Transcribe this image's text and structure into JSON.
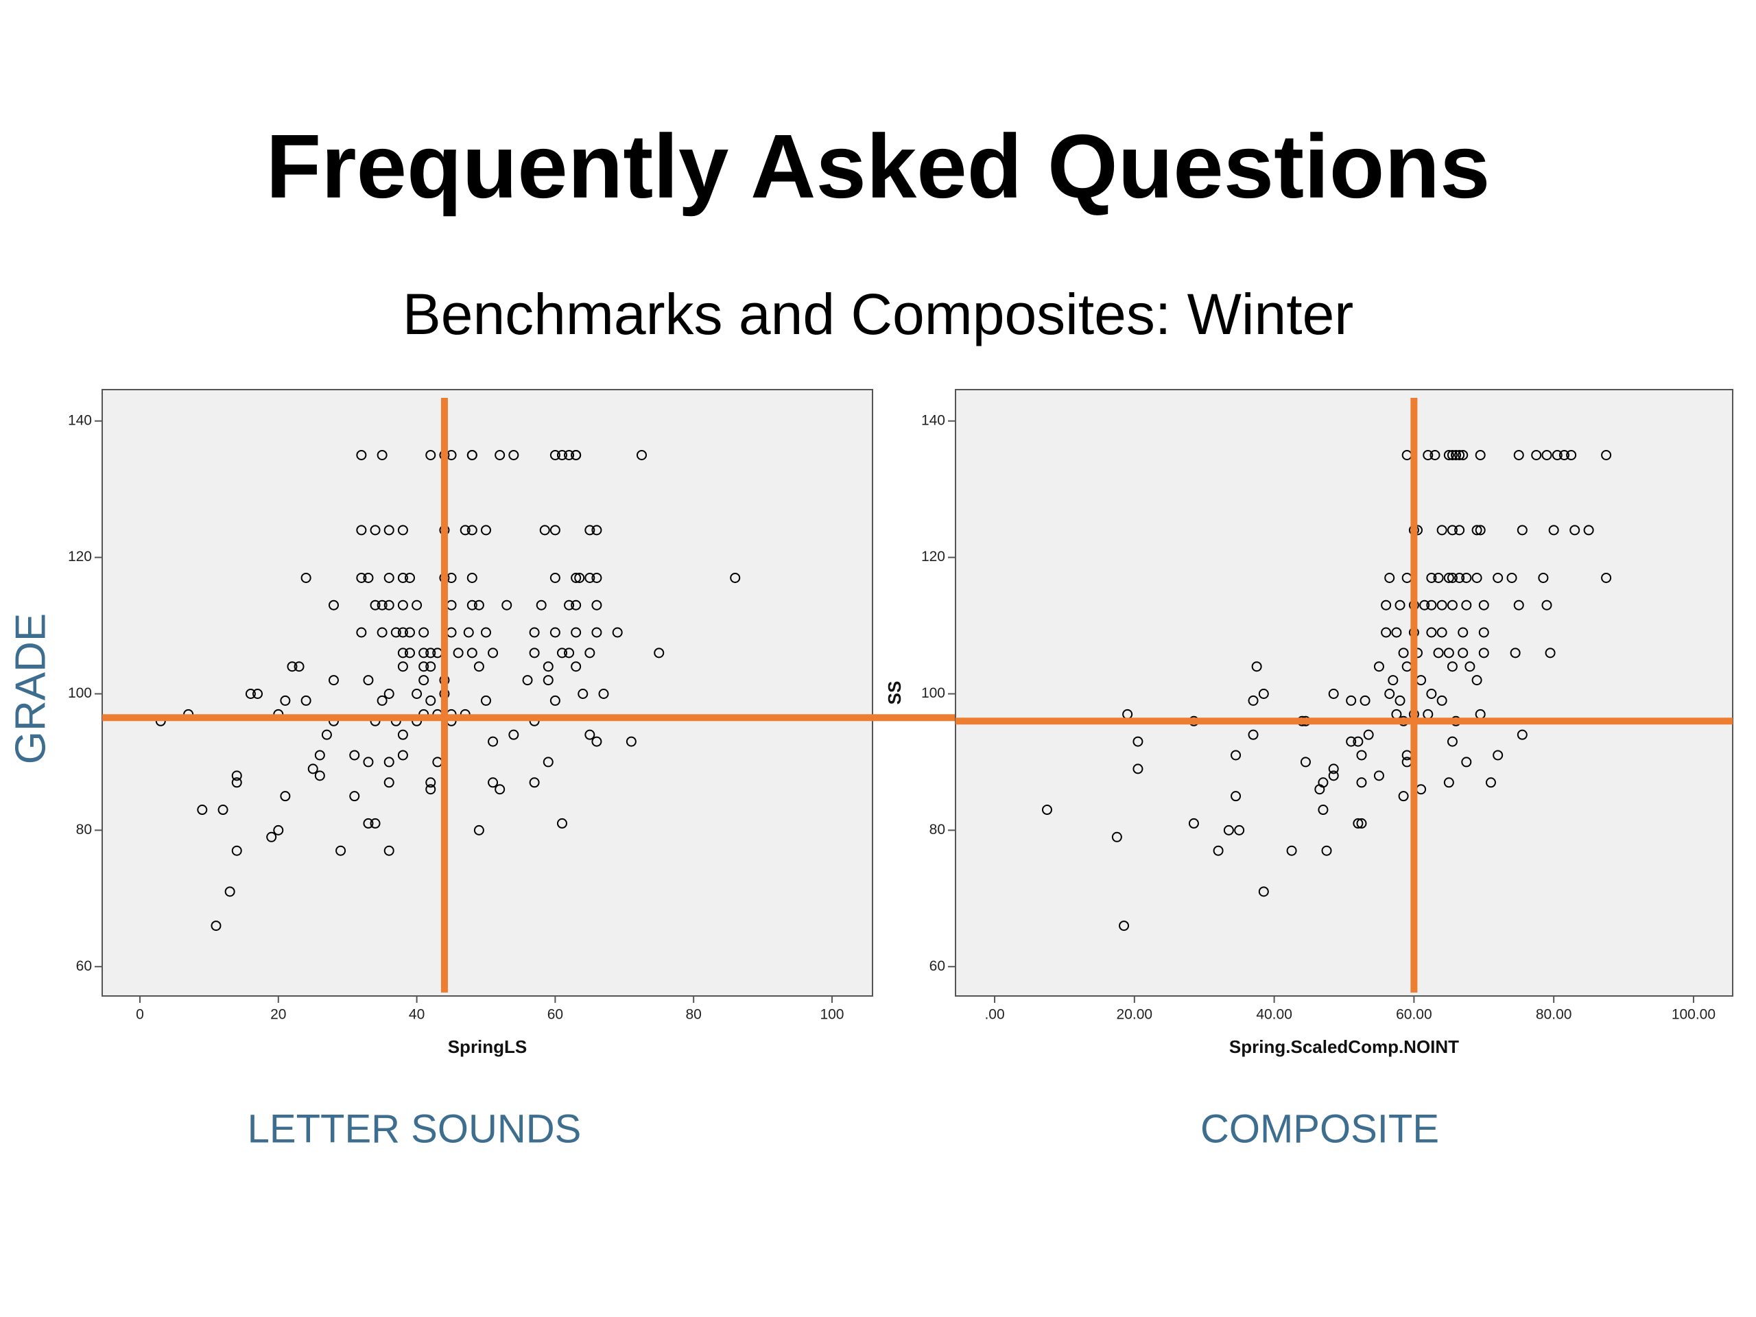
{
  "title": "Frequently Asked Questions",
  "subtitle": "Benchmarks and Composites: Winter",
  "chart_data": [
    {
      "type": "scatter",
      "x_label": "SpringLS",
      "y_label": "GRADE",
      "caption": "LETTER SOUNDS",
      "color": "#000000",
      "line_color": "#ed7d31",
      "vline": 44,
      "hline": 96.5,
      "xlim": [
        -5.45,
        105.85
      ],
      "ylim": [
        55.7,
        144.6
      ],
      "xticks": [
        0,
        20,
        40,
        60,
        80,
        100
      ],
      "yticks": [
        60,
        80,
        100,
        120,
        140
      ],
      "x": [
        32,
        35,
        42,
        44,
        45,
        48,
        48,
        52,
        54,
        60,
        61,
        62,
        63,
        63,
        72.5,
        32,
        34,
        36,
        38,
        44,
        47,
        48,
        50,
        58.5,
        60,
        65,
        66,
        24,
        32,
        33,
        36,
        38,
        39,
        44,
        45,
        48,
        60,
        63,
        63.5,
        65,
        66,
        86,
        28,
        34,
        35,
        36,
        38,
        40,
        45,
        48,
        49,
        53,
        58,
        62,
        63,
        66,
        32,
        35,
        37,
        38,
        39,
        41,
        45,
        47.5,
        50,
        57,
        60,
        63,
        66,
        69,
        38,
        39,
        41,
        42,
        43,
        46,
        48,
        51,
        57,
        61,
        62,
        65,
        75,
        22,
        23,
        38,
        41,
        42,
        49,
        59,
        63,
        28,
        33,
        41,
        44,
        56,
        59,
        16,
        17,
        36,
        40,
        44,
        64,
        67,
        21,
        24,
        35,
        42,
        50,
        60,
        7,
        20,
        41,
        43,
        45,
        47,
        3,
        28,
        34,
        37,
        40,
        45,
        57,
        27,
        38,
        54,
        65,
        51,
        66,
        71,
        26,
        31,
        38,
        33,
        36,
        43,
        59,
        25,
        14,
        26,
        14,
        36,
        42,
        51,
        57,
        42,
        52,
        21,
        31,
        9,
        12,
        33,
        34,
        61,
        20,
        49,
        19,
        14,
        29,
        36,
        13,
        11
      ],
      "values": [
        135,
        135,
        135,
        135,
        135,
        135,
        135,
        135,
        135,
        135,
        135,
        135,
        135,
        135,
        135,
        124,
        124,
        124,
        124,
        124,
        124,
        124,
        124,
        124,
        124,
        124,
        124,
        117,
        117,
        117,
        117,
        117,
        117,
        117,
        117,
        117,
        117,
        117,
        117,
        117,
        117,
        117,
        113,
        113,
        113,
        113,
        113,
        113,
        113,
        113,
        113,
        113,
        113,
        113,
        113,
        113,
        109,
        109,
        109,
        109,
        109,
        109,
        109,
        109,
        109,
        109,
        109,
        109,
        109,
        109,
        106,
        106,
        106,
        106,
        106,
        106,
        106,
        106,
        106,
        106,
        106,
        106,
        106,
        104,
        104,
        104,
        104,
        104,
        104,
        104,
        104,
        102,
        102,
        102,
        102,
        102,
        102,
        100,
        100,
        100,
        100,
        100,
        100,
        100,
        99,
        99,
        99,
        99,
        99,
        99,
        97,
        97,
        97,
        97,
        97,
        97,
        96,
        96,
        96,
        96,
        96,
        96,
        96,
        94,
        94,
        94,
        94,
        93,
        93,
        93,
        91,
        91,
        91,
        90,
        90,
        90,
        90,
        89,
        88,
        88,
        87,
        87,
        87,
        87,
        87,
        86,
        86,
        85,
        85,
        83,
        83,
        81,
        81,
        81,
        80,
        80,
        79,
        77,
        77,
        77,
        71,
        66
      ]
    },
    {
      "type": "scatter",
      "x_label": "Spring.ScaledComp.NOINT",
      "y_label": "SS",
      "caption": "COMPOSITE",
      "color": "#000000",
      "line_color": "#ed7d31",
      "vline": 60,
      "hline": 96,
      "xlim": [
        -5.6,
        105.6
      ],
      "ylim": [
        55.7,
        144.6
      ],
      "xticks": [
        {
          "value": 0,
          "label": ".00"
        },
        {
          "value": 20,
          "label": "20.00"
        },
        {
          "value": 40,
          "label": "40.00"
        },
        {
          "value": 60,
          "label": "60.00"
        },
        {
          "value": 80,
          "label": "80.00"
        },
        {
          "value": 100,
          "label": "100.00"
        }
      ],
      "yticks": [
        60,
        80,
        100,
        120,
        140
      ],
      "x": [
        59,
        62,
        63,
        65,
        65.5,
        66,
        66.5,
        67,
        69.5,
        75,
        77.5,
        79,
        80.5,
        81.5,
        82.5,
        87.5,
        60,
        60.5,
        64,
        65.5,
        66.5,
        69,
        69.5,
        75.5,
        80,
        83,
        85,
        56.5,
        59,
        62.5,
        63.5,
        65,
        65.5,
        66.5,
        67.5,
        69,
        72,
        74,
        78.5,
        87.5,
        56,
        58,
        60,
        61.5,
        62.5,
        64,
        65.5,
        67.5,
        70,
        75,
        79,
        56,
        57.5,
        60,
        62.5,
        64,
        67,
        70,
        58.5,
        60.5,
        63.5,
        65,
        67,
        70,
        74.5,
        79.5,
        37.5,
        55,
        59,
        65.5,
        68,
        57,
        61,
        69,
        38.5,
        48.5,
        56.5,
        62.5,
        37,
        51,
        53,
        58,
        64,
        19,
        57.5,
        60,
        62,
        69.5,
        28.5,
        44,
        44.5,
        58.5,
        66,
        37,
        53.5,
        75.5,
        20.5,
        51,
        52,
        65.5,
        34.5,
        52.5,
        59,
        72,
        44.5,
        59,
        67.5,
        20.5,
        48.5,
        48.5,
        55,
        47,
        52.5,
        65,
        71,
        46.5,
        61,
        34.5,
        58.5,
        7.5,
        47,
        28.5,
        52,
        52.5,
        33.5,
        35,
        17.5,
        32,
        42.5,
        47.5,
        38.5,
        18.5
      ],
      "values": [
        135,
        135,
        135,
        135,
        135,
        135,
        135,
        135,
        135,
        135,
        135,
        135,
        135,
        135,
        135,
        135,
        124,
        124,
        124,
        124,
        124,
        124,
        124,
        124,
        124,
        124,
        124,
        117,
        117,
        117,
        117,
        117,
        117,
        117,
        117,
        117,
        117,
        117,
        117,
        117,
        113,
        113,
        113,
        113,
        113,
        113,
        113,
        113,
        113,
        113,
        113,
        109,
        109,
        109,
        109,
        109,
        109,
        109,
        106,
        106,
        106,
        106,
        106,
        106,
        106,
        106,
        104,
        104,
        104,
        104,
        104,
        102,
        102,
        102,
        100,
        100,
        100,
        100,
        99,
        99,
        99,
        99,
        99,
        97,
        97,
        97,
        97,
        97,
        96,
        96,
        96,
        96,
        96,
        94,
        94,
        94,
        93,
        93,
        93,
        93,
        91,
        91,
        91,
        91,
        90,
        90,
        90,
        89,
        89,
        88,
        88,
        87,
        87,
        87,
        87,
        86,
        86,
        85,
        85,
        83,
        83,
        81,
        81,
        81,
        80,
        80,
        79,
        77,
        77,
        77,
        71,
        66
      ]
    }
  ]
}
